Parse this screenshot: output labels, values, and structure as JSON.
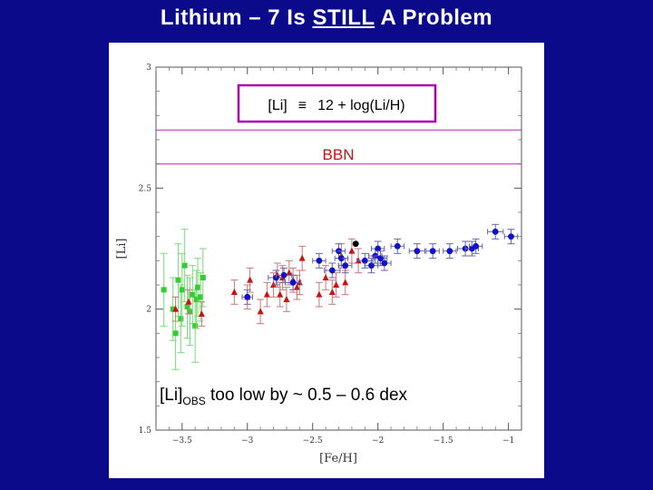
{
  "slide": {
    "title_parts": [
      "Lithium – 7  Is  ",
      "STILL",
      "  A  Problem"
    ]
  },
  "chart_data": {
    "type": "scatter",
    "xlabel": "[Fe/H]",
    "ylabel": "[Li]",
    "xlim": [
      -3.7,
      -0.9
    ],
    "ylim": [
      1.5,
      3.0
    ],
    "xticks": [
      -3.5,
      -3,
      -2.5,
      -2,
      -1.5,
      -1
    ],
    "xtick_labels": [
      "−3.5",
      "−3",
      "−2.5",
      "−2",
      "−1.5",
      "−1"
    ],
    "yticks": [
      1.5,
      2,
      2.5,
      3
    ],
    "ytick_labels": [
      "1.5",
      "2",
      "2.5",
      "3"
    ],
    "bbn_band": [
      2.6,
      2.74
    ],
    "annotations": {
      "formula_lhs": "[Li]",
      "formula_equiv": "≡",
      "formula_rhs": "12 + log(Li/H)",
      "bbn": "BBN",
      "obs_main": "[Li]",
      "obs_sub": "OBS",
      "obs_rest": "  too  low  by  ~ 0.5 – 0.6 dex"
    },
    "colors": {
      "green": "#33cc33",
      "red": "#cc1111",
      "blue": "#1111cc",
      "black": "#000000",
      "bbn_line": "#cc66cc",
      "formula_box": "#aa00aa"
    },
    "series": [
      {
        "marker": "square",
        "color": "green",
        "x": [
          -3.64,
          -3.57,
          -3.55,
          -3.53,
          -3.51,
          -3.5,
          -3.48,
          -3.46,
          -3.44,
          -3.42,
          -3.4,
          -3.39,
          -3.38,
          -3.36,
          -3.34
        ],
        "y": [
          2.08,
          2.0,
          1.9,
          2.12,
          1.96,
          2.08,
          2.18,
          2.01,
          1.99,
          2.06,
          1.93,
          2.04,
          2.09,
          2.05,
          2.13
        ],
        "err": [
          0.15,
          0.13,
          0.15,
          0.15,
          0.14,
          0.15,
          0.15,
          0.13,
          0.14,
          0.12,
          0.15,
          0.12,
          0.12,
          0.1,
          0.12
        ]
      },
      {
        "marker": "triangle",
        "color": "red",
        "x": [
          -3.55,
          -3.45,
          -3.35,
          -3.1,
          -3.0,
          -2.98,
          -2.9,
          -2.85,
          -2.8,
          -2.77,
          -2.75,
          -2.73,
          -2.7,
          -2.68,
          -2.65,
          -2.62,
          -2.6,
          -2.58,
          -2.45,
          -2.4,
          -2.35,
          -2.32,
          -2.28,
          -2.25,
          -2.2,
          -2.15
        ],
        "y": [
          2.0,
          2.03,
          1.98,
          2.07,
          2.05,
          2.12,
          1.99,
          2.06,
          2.1,
          2.14,
          2.06,
          2.13,
          2.04,
          2.15,
          2.12,
          2.09,
          2.11,
          2.21,
          2.06,
          2.13,
          2.07,
          2.1,
          2.22,
          2.11,
          2.24,
          2.2
        ],
        "err": [
          0.05,
          0.05,
          0.05,
          0.05,
          0.05,
          0.05,
          0.05,
          0.05,
          0.05,
          0.05,
          0.05,
          0.05,
          0.05,
          0.05,
          0.05,
          0.05,
          0.05,
          0.05,
          0.05,
          0.05,
          0.05,
          0.05,
          0.05,
          0.05,
          0.05,
          0.05
        ]
      },
      {
        "marker": "circle",
        "color": "blue",
        "x": [
          -3.0,
          -2.78,
          -2.72,
          -2.65,
          -2.45,
          -2.35,
          -2.3,
          -2.28,
          -2.25,
          -2.1,
          -2.05,
          -2.02,
          -2.0,
          -1.98,
          -1.95,
          -1.85,
          -1.7,
          -1.58,
          -1.45,
          -1.33,
          -1.28,
          -1.25,
          -1.1,
          -0.98
        ],
        "y": [
          2.05,
          2.13,
          2.14,
          2.11,
          2.2,
          2.16,
          2.24,
          2.21,
          2.18,
          2.2,
          2.18,
          2.22,
          2.25,
          2.21,
          2.19,
          2.26,
          2.24,
          2.24,
          2.24,
          2.25,
          2.25,
          2.26,
          2.32,
          2.3
        ],
        "xerr": [
          0.04,
          0.06,
          0.06,
          0.06,
          0.05,
          0.06,
          0.05,
          0.05,
          0.05,
          0.06,
          0.05,
          0.05,
          0.05,
          0.05,
          0.05,
          0.05,
          0.06,
          0.05,
          0.05,
          0.06,
          0.05,
          0.05,
          0.06,
          0.05
        ],
        "err": [
          0.03,
          0.03,
          0.03,
          0.03,
          0.03,
          0.03,
          0.03,
          0.03,
          0.03,
          0.03,
          0.03,
          0.03,
          0.03,
          0.03,
          0.03,
          0.03,
          0.03,
          0.03,
          0.03,
          0.03,
          0.03,
          0.03,
          0.03,
          0.03
        ]
      },
      {
        "marker": "circle",
        "color": "black",
        "x": [
          -2.17
        ],
        "y": [
          2.27
        ],
        "err": [
          0
        ]
      }
    ]
  }
}
